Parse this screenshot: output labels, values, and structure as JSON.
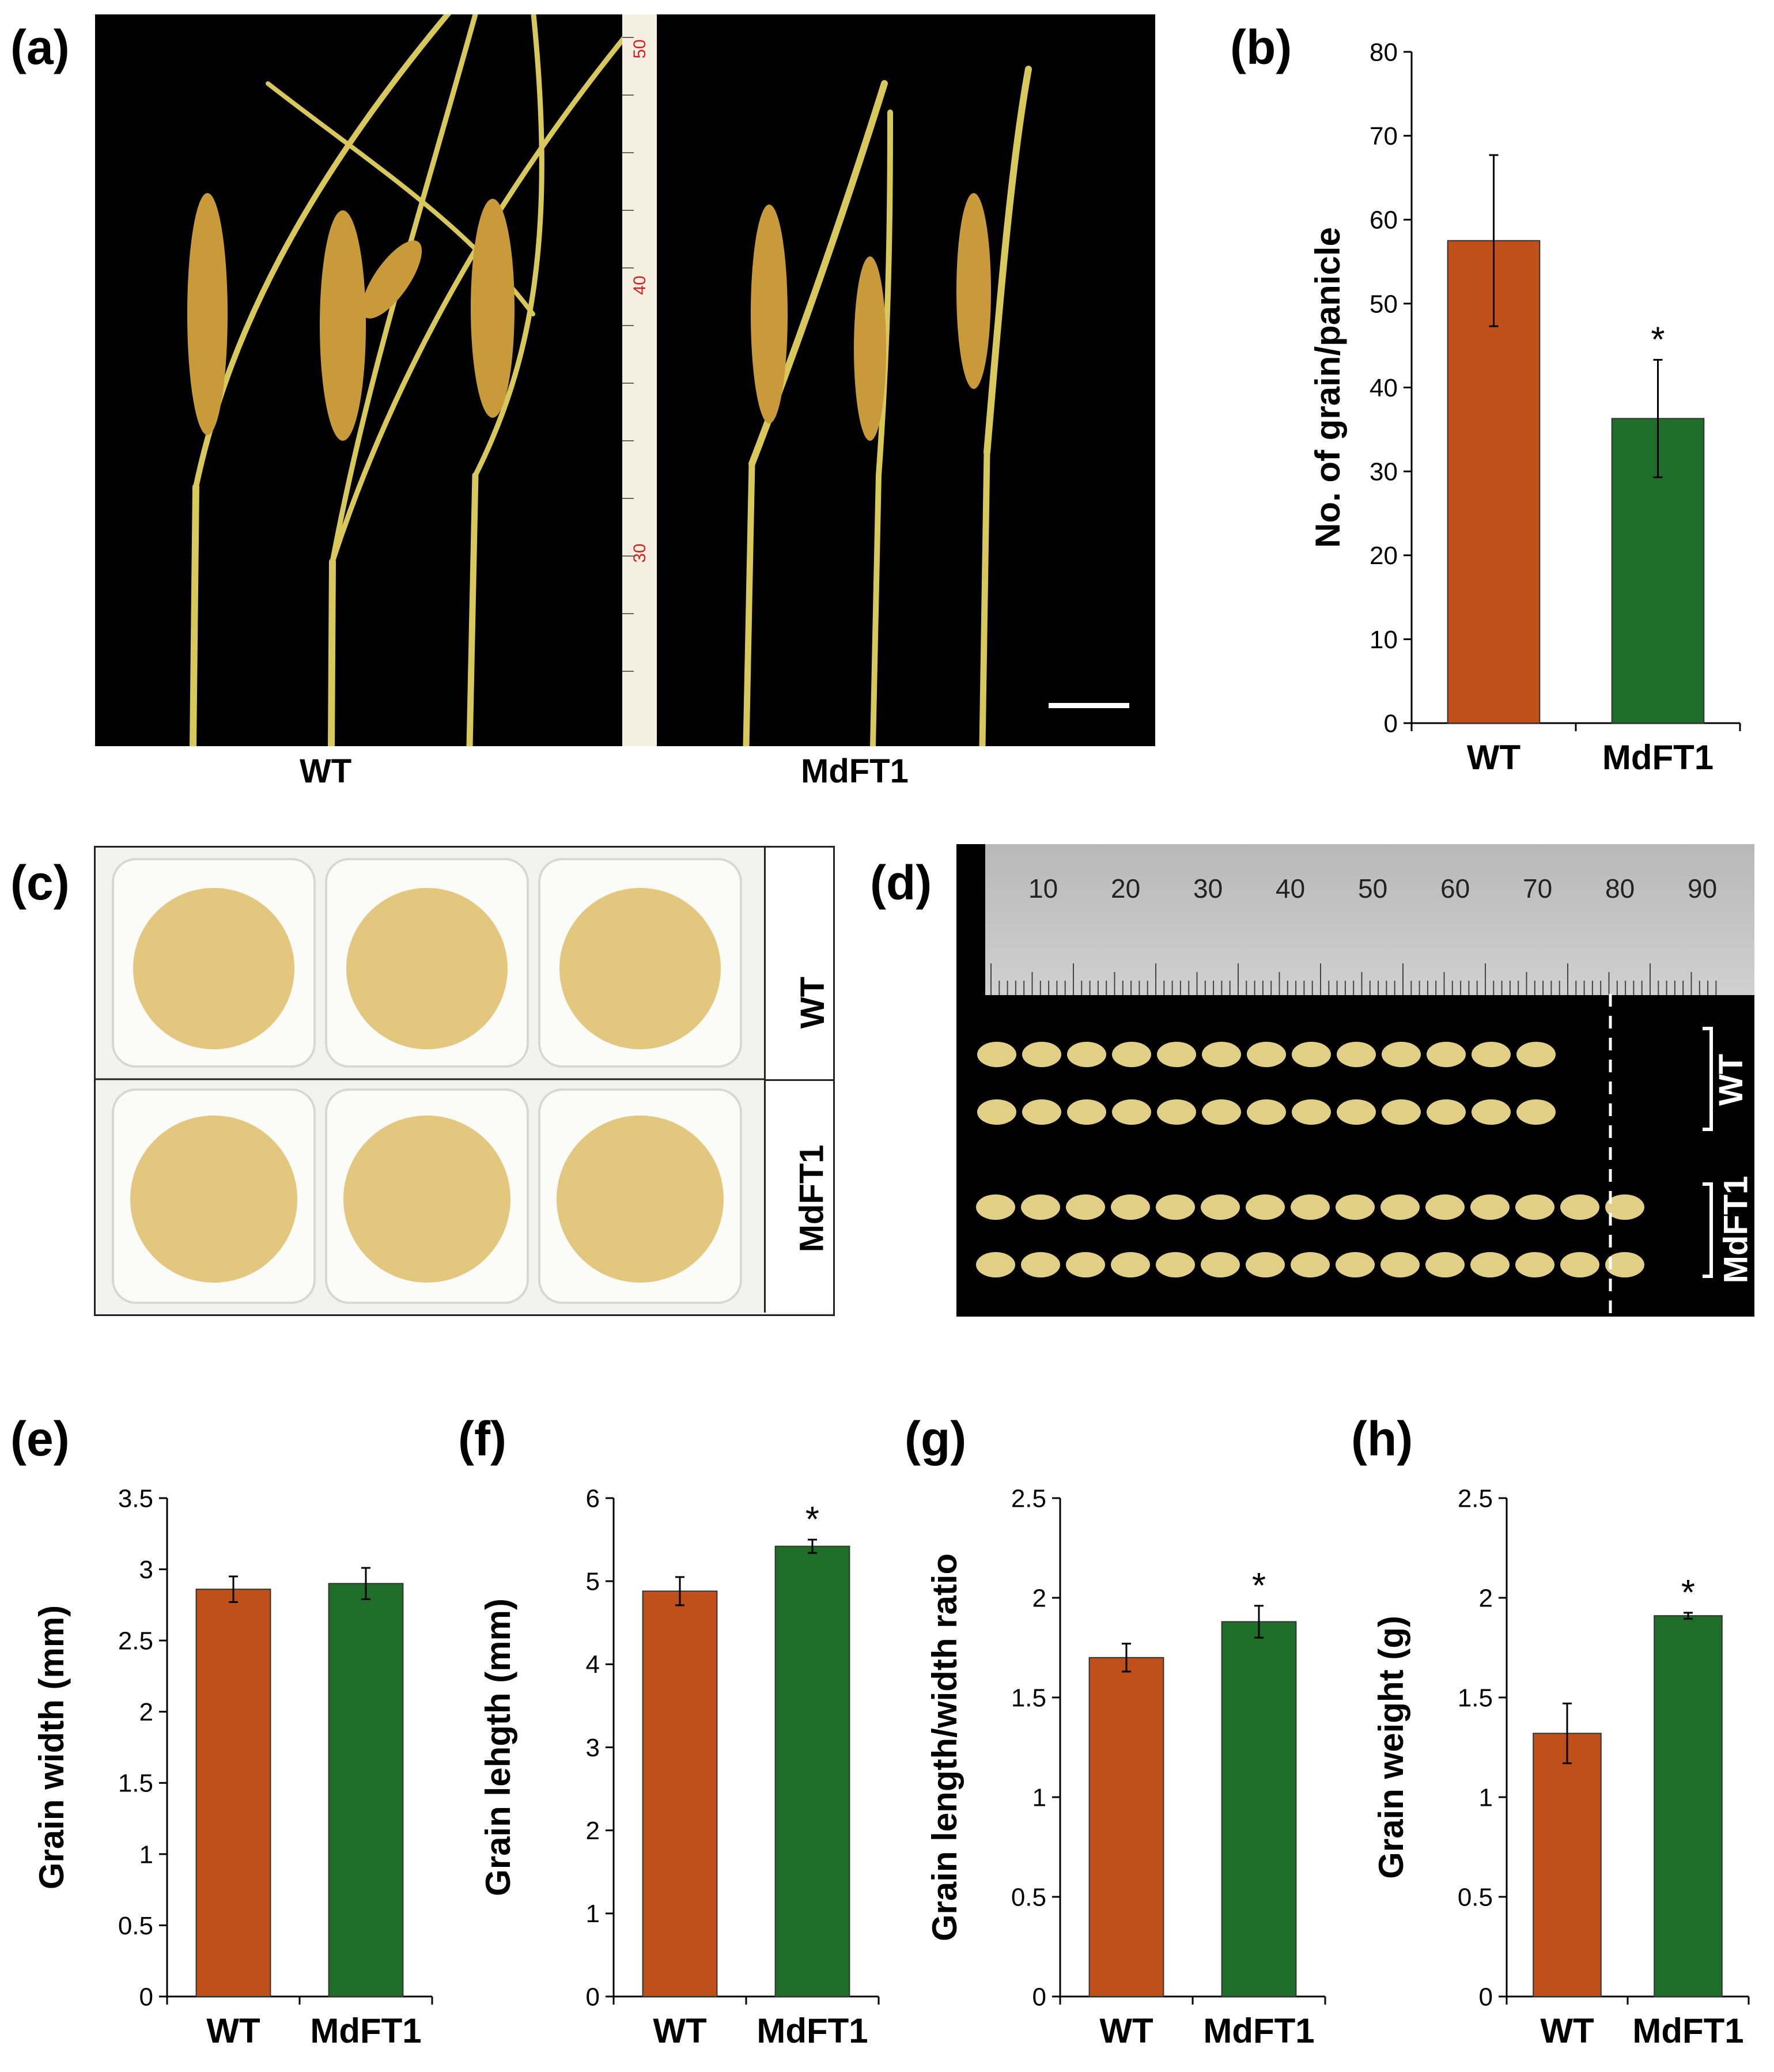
{
  "panels": {
    "a": {
      "label": "(a)",
      "ruler_marks": [
        "50",
        "40",
        "30"
      ],
      "group_labels": [
        "WT",
        "MdFT1"
      ]
    },
    "b": {
      "label": "(b)",
      "ylabel": "No. of grain/panicle"
    },
    "c": {
      "label": "(c)",
      "row_labels": [
        "WT",
        "MdFT1"
      ]
    },
    "d": {
      "label": "(d)",
      "ruler_numbers": [
        "10",
        "20",
        "30",
        "40",
        "50",
        "60",
        "70",
        "80",
        "90"
      ],
      "row_labels": [
        "WT",
        "MdFT1"
      ]
    },
    "e": {
      "label": "(e)",
      "ylabel": "Grain width (mm)"
    },
    "f": {
      "label": "(f)",
      "ylabel": "Grain lehgth (mm)"
    },
    "g": {
      "label": "(g)",
      "ylabel": "Grain length/width ratio"
    },
    "h": {
      "label": "(h)",
      "ylabel": "Grain weight (g)"
    }
  },
  "colors": {
    "wt": "#c0501a",
    "mdft1": "#1e6e2a",
    "photo_bg": "#000000"
  },
  "chart_data": [
    {
      "panel": "b",
      "type": "bar",
      "categories": [
        "WT",
        "MdFT1"
      ],
      "values": [
        57.5,
        36.3
      ],
      "errors": [
        10.2,
        7.0
      ],
      "significance": [
        "",
        "*"
      ],
      "ylabel": "No. of grain/panicle",
      "ylim": [
        0,
        80
      ],
      "yticks": [
        0,
        10,
        20,
        30,
        40,
        50,
        60,
        70,
        80
      ],
      "ytick_labels": [
        "0",
        "10",
        "20",
        "30",
        "40",
        "50",
        "60",
        "70",
        "80"
      ]
    },
    {
      "panel": "e",
      "type": "bar",
      "categories": [
        "WT",
        "MdFT1"
      ],
      "values": [
        2.86,
        2.9
      ],
      "errors": [
        0.09,
        0.11
      ],
      "significance": [
        "",
        ""
      ],
      "ylabel": "Grain width (mm)",
      "ylim": [
        0,
        3.5
      ],
      "yticks": [
        0,
        0.5,
        1,
        1.5,
        2,
        2.5,
        3,
        3.5
      ],
      "ytick_labels": [
        "0",
        "0.5",
        "1",
        "1.5",
        "2",
        "2.5",
        "3",
        "3.5"
      ]
    },
    {
      "panel": "f",
      "type": "bar",
      "categories": [
        "WT",
        "MdFT1"
      ],
      "values": [
        4.88,
        5.42
      ],
      "errors": [
        0.17,
        0.08
      ],
      "significance": [
        "",
        "*"
      ],
      "ylabel": "Grain lehgth (mm)",
      "ylim": [
        0,
        6
      ],
      "yticks": [
        0,
        1,
        2,
        3,
        4,
        5,
        6
      ],
      "ytick_labels": [
        "0",
        "1",
        "2",
        "3",
        "4",
        "5",
        "6"
      ]
    },
    {
      "panel": "g",
      "type": "bar",
      "categories": [
        "WT",
        "MdFT1"
      ],
      "values": [
        1.7,
        1.88
      ],
      "errors": [
        0.07,
        0.08
      ],
      "significance": [
        "",
        "*"
      ],
      "ylabel": "Grain length/width ratio",
      "ylim": [
        0,
        2.5
      ],
      "yticks": [
        0,
        0.5,
        1,
        1.5,
        2,
        2.5
      ],
      "ytick_labels": [
        "0",
        "0.5",
        "1",
        "1.5",
        "2",
        "2.5"
      ]
    },
    {
      "panel": "h",
      "type": "bar",
      "categories": [
        "WT",
        "MdFT1"
      ],
      "values": [
        1.32,
        1.91
      ],
      "errors": [
        0.15,
        0.015
      ],
      "significance": [
        "",
        "*"
      ],
      "ylabel": "Grain weight (g)",
      "ylim": [
        0,
        2.5
      ],
      "yticks": [
        0,
        0.5,
        1,
        1.5,
        2,
        2.5
      ],
      "ytick_labels": [
        "0",
        "0.5",
        "1",
        "1.5",
        "2",
        "2.5"
      ]
    }
  ]
}
